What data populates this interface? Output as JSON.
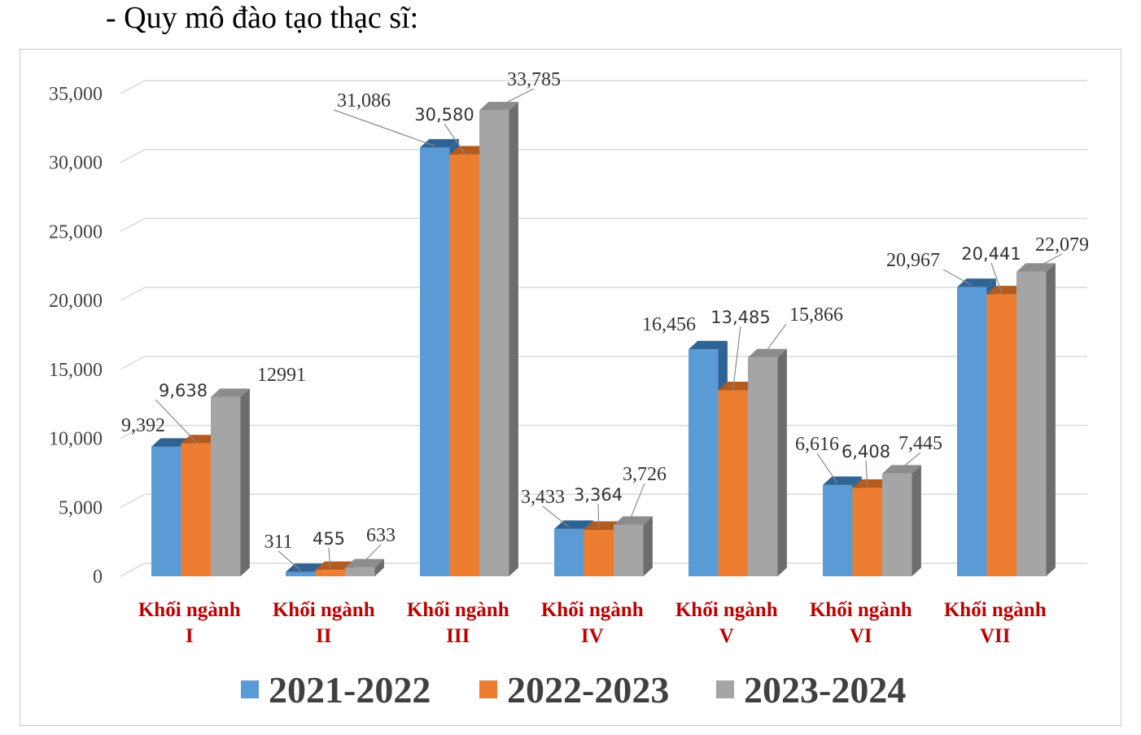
{
  "heading": "- Quy mô đào tạo thạc sĩ:",
  "chart_data": {
    "type": "bar",
    "style": "3d-clustered-column",
    "categories": [
      [
        "Khối ngành",
        "I"
      ],
      [
        "Khối ngành",
        "II"
      ],
      [
        "Khối ngành",
        "III"
      ],
      [
        "Khối ngành",
        "IV"
      ],
      [
        "Khối ngành",
        "V"
      ],
      [
        "Khối ngành",
        "VI"
      ],
      [
        "Khối ngành",
        "VII"
      ]
    ],
    "series": [
      {
        "name": "2021-2022",
        "color": "#5b9bd5",
        "values": [
          9392,
          311,
          31086,
          3433,
          16456,
          6616,
          20967
        ],
        "labels": [
          "9,392",
          "311",
          "31,086",
          "3,433",
          "16,456",
          "6,616",
          "20,967"
        ]
      },
      {
        "name": "2022-2023",
        "color": "#ed7d31",
        "values": [
          9638,
          455,
          30580,
          3364,
          13485,
          6408,
          20441
        ],
        "labels": [
          "9,638",
          "455",
          "30,580",
          "3,364",
          "13,485",
          "6,408",
          "20,441"
        ]
      },
      {
        "name": "2023-2024",
        "color": "#a5a5a5",
        "values": [
          12991,
          633,
          33785,
          3726,
          15866,
          7445,
          22079
        ],
        "labels": [
          "12991",
          "633",
          "33,785",
          "3,726",
          "15,866",
          "7,445",
          "22,079"
        ]
      }
    ],
    "yticks": [
      "0",
      "5,000",
      "10,000",
      "15,000",
      "20,000",
      "25,000",
      "30,000",
      "35,000"
    ],
    "ylim": [
      0,
      35000
    ],
    "grid": true,
    "legend_position": "bottom",
    "category_label_color": "#c00000"
  }
}
